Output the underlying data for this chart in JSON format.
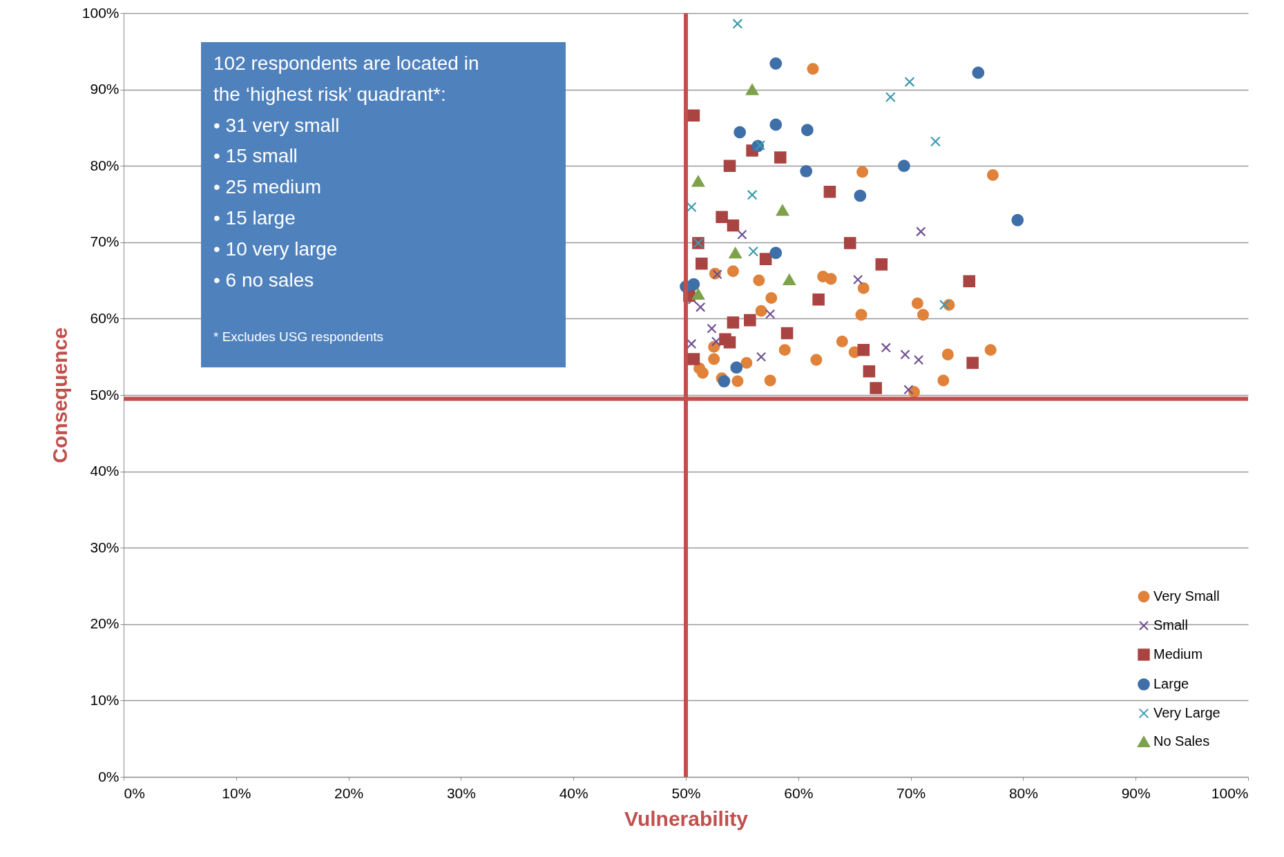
{
  "chart_data": {
    "type": "scatter",
    "xlabel": "Vulnerability",
    "ylabel": "Consequence",
    "xlim": [
      0,
      100
    ],
    "ylim": [
      0,
      100
    ],
    "xticks": [
      {
        "value": 0,
        "label": "0%"
      },
      {
        "value": 10,
        "label": "10%"
      },
      {
        "value": 20,
        "label": "20%"
      },
      {
        "value": 30,
        "label": "30%"
      },
      {
        "value": 40,
        "label": "40%"
      },
      {
        "value": 50,
        "label": "50%"
      },
      {
        "value": 60,
        "label": "60%"
      },
      {
        "value": 70,
        "label": "70%"
      },
      {
        "value": 80,
        "label": "80%"
      },
      {
        "value": 90,
        "label": "90%"
      },
      {
        "value": 100,
        "label": "100%"
      }
    ],
    "yticks": [
      {
        "value": 0,
        "label": "0%"
      },
      {
        "value": 10,
        "label": "10%"
      },
      {
        "value": 20,
        "label": "20%"
      },
      {
        "value": 30,
        "label": "30%"
      },
      {
        "value": 40,
        "label": "40%"
      },
      {
        "value": 50,
        "label": "50%"
      },
      {
        "value": 60,
        "label": "60%"
      },
      {
        "value": 70,
        "label": "70%"
      },
      {
        "value": 80,
        "label": "80%"
      },
      {
        "value": 90,
        "label": "90%"
      },
      {
        "value": 100,
        "label": "100%"
      }
    ],
    "grid": "y",
    "legend": "bottom right",
    "series": [
      {
        "name": "Very Small",
        "color": "#e0823a",
        "marker": "circle",
        "x": [
          61.3,
          65.7,
          77.3,
          54.2,
          52.6,
          56.5,
          62.2,
          62.9,
          65.8,
          57.6,
          56.7,
          65.6,
          70.6,
          71.1,
          73.4,
          63.9,
          52.5,
          58.8,
          65.0,
          73.3,
          77.1,
          52.5,
          55.4,
          61.6,
          51.2,
          51.5,
          53.2,
          54.6,
          57.5,
          72.9,
          70.3
        ],
        "values": [
          92.7,
          79.2,
          78.8,
          66.2,
          65.9,
          65.0,
          65.5,
          65.2,
          64.0,
          62.7,
          61.0,
          60.5,
          62.0,
          60.5,
          61.8,
          57.0,
          56.3,
          55.9,
          55.6,
          55.3,
          55.9,
          54.7,
          54.2,
          54.6,
          53.5,
          52.9,
          52.2,
          51.8,
          51.9,
          51.9,
          50.4
        ]
      },
      {
        "name": "Small",
        "color": "#6f4f93",
        "marker": "cross",
        "x": [
          55.0,
          70.9,
          65.3,
          52.8,
          50.6,
          51.3,
          57.5,
          52.3,
          50.5,
          52.7,
          56.7,
          67.8,
          69.5,
          70.7,
          69.8
        ],
        "values": [
          71.0,
          71.4,
          65.1,
          65.8,
          62.5,
          61.5,
          60.6,
          58.7,
          56.7,
          57.0,
          55.0,
          56.2,
          55.3,
          54.6,
          50.7
        ]
      },
      {
        "name": "Medium",
        "color": "#a94442",
        "marker": "square",
        "x": [
          50.7,
          55.9,
          58.4,
          53.9,
          62.8,
          53.2,
          54.2,
          51.1,
          64.6,
          57.1,
          51.4,
          67.4,
          75.2,
          50.3,
          61.8,
          54.2,
          55.7,
          59.0,
          53.5,
          53.9,
          50.7,
          65.8,
          66.3,
          66.9,
          75.5
        ],
        "values": [
          86.6,
          82.0,
          81.1,
          80.0,
          76.6,
          73.3,
          72.2,
          69.9,
          69.9,
          67.8,
          67.2,
          67.1,
          64.9,
          63.0,
          62.5,
          59.5,
          59.8,
          58.1,
          57.3,
          56.9,
          54.7,
          55.9,
          53.1,
          50.9,
          54.2
        ]
      },
      {
        "name": "Large",
        "color": "#3f6fa8",
        "marker": "circle",
        "x": [
          58.0,
          76.0,
          54.8,
          58.0,
          60.8,
          56.4,
          60.7,
          69.4,
          65.5,
          79.5,
          58.0,
          50.7,
          50.0,
          54.5,
          53.4
        ],
        "values": [
          93.4,
          92.2,
          84.4,
          85.4,
          84.7,
          82.6,
          79.3,
          80.0,
          76.1,
          72.9,
          68.6,
          64.5,
          64.2,
          53.6,
          51.8
        ]
      },
      {
        "name": "Very Large",
        "color": "#3a9bb0",
        "marker": "cross",
        "x": [
          54.6,
          69.9,
          68.2,
          56.6,
          72.2,
          55.9,
          50.5,
          51.1,
          56.0,
          73.0
        ],
        "values": [
          98.6,
          91.0,
          89.0,
          82.7,
          83.2,
          76.2,
          74.6,
          69.9,
          68.8,
          61.8
        ]
      },
      {
        "name": "No Sales",
        "color": "#7da24a",
        "marker": "triangle",
        "x": [
          55.9,
          51.1,
          58.6,
          54.4,
          59.2,
          51.1
        ],
        "values": [
          90.0,
          78.0,
          74.2,
          68.6,
          65.1,
          63.2
        ]
      }
    ],
    "ref_lines": [
      {
        "axis": "x",
        "value": 50,
        "color": "#c0504d"
      },
      {
        "axis": "y",
        "value": 49.5,
        "color": "#c0504d"
      }
    ],
    "annotations": [
      "102 respondents are located in\nthe ‘highest risk’ quadrant*:\n•     31 very small\n•     15 small\n•     25 medium\n•     15 large\n•     10 very large\n•     6 no sales",
      "* Excludes USG respondents"
    ]
  }
}
